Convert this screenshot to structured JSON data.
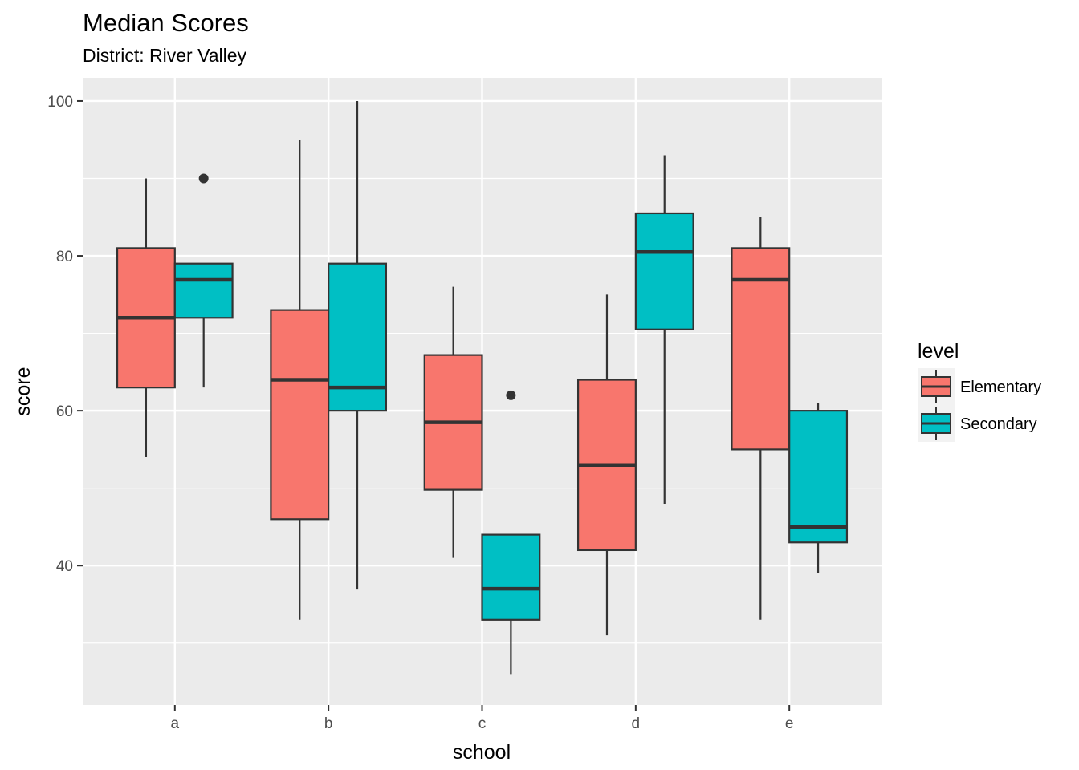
{
  "chart_data": {
    "type": "boxplot",
    "title": "Median Scores",
    "subtitle": "District: River Valley",
    "xlabel": "school",
    "ylabel": "score",
    "categories": [
      "a",
      "b",
      "c",
      "d",
      "e"
    ],
    "ylim": [
      22,
      103
    ],
    "yticks": [
      40,
      60,
      80,
      100
    ],
    "grid": true,
    "legend": {
      "title": "level",
      "placement": "right"
    },
    "series": [
      {
        "name": "Elementary",
        "color": "#F8766D",
        "boxes": [
          {
            "category": "a",
            "lower_whisker": 54,
            "q1": 63,
            "median": 72,
            "q3": 81,
            "upper_whisker": 90,
            "outliers": []
          },
          {
            "category": "b",
            "lower_whisker": 33,
            "q1": 46,
            "median": 64,
            "q3": 73,
            "upper_whisker": 95,
            "outliers": []
          },
          {
            "category": "c",
            "lower_whisker": 41,
            "q1": 49.8,
            "median": 58.5,
            "q3": 67.2,
            "upper_whisker": 76,
            "outliers": []
          },
          {
            "category": "d",
            "lower_whisker": 31,
            "q1": 42,
            "median": 53,
            "q3": 64,
            "upper_whisker": 75,
            "outliers": []
          },
          {
            "category": "e",
            "lower_whisker": 33,
            "q1": 55,
            "median": 77,
            "q3": 81,
            "upper_whisker": 85,
            "outliers": []
          }
        ]
      },
      {
        "name": "Secondary",
        "color": "#00BFC4",
        "boxes": [
          {
            "category": "a",
            "lower_whisker": 63,
            "q1": 72,
            "median": 77,
            "q3": 79,
            "upper_whisker": 79,
            "outliers": [
              90
            ]
          },
          {
            "category": "b",
            "lower_whisker": 37,
            "q1": 60,
            "median": 63,
            "q3": 79,
            "upper_whisker": 100,
            "outliers": []
          },
          {
            "category": "c",
            "lower_whisker": 26,
            "q1": 33,
            "median": 37,
            "q3": 44,
            "upper_whisker": 44,
            "outliers": [
              62
            ]
          },
          {
            "category": "d",
            "lower_whisker": 48,
            "q1": 70.5,
            "median": 80.5,
            "q3": 85.5,
            "upper_whisker": 93,
            "outliers": []
          },
          {
            "category": "e",
            "lower_whisker": 39,
            "q1": 43,
            "median": 45,
            "q3": 60,
            "upper_whisker": 61,
            "outliers": []
          }
        ]
      }
    ]
  }
}
